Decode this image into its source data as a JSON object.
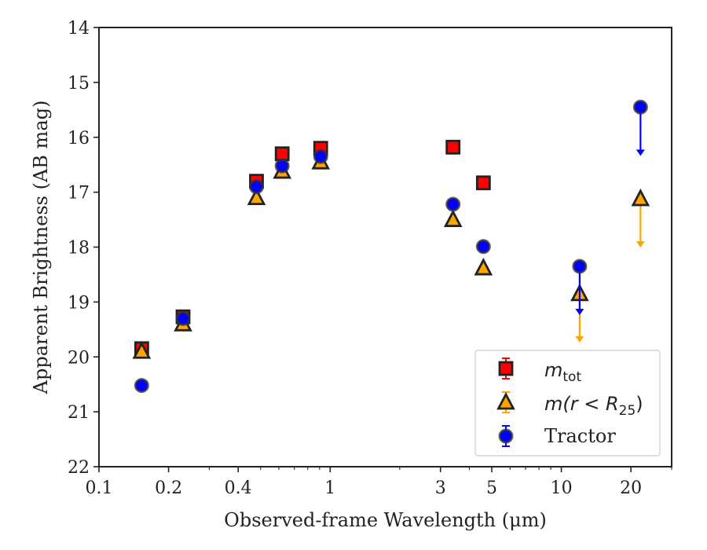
{
  "chart_data": {
    "type": "scatter",
    "title": "",
    "xlabel": "Observed-frame Wavelength (μm)",
    "ylabel": "Apparent Brightness (AB mag)",
    "x_scale": "log",
    "xlim": [
      0.1,
      30
    ],
    "ylim": [
      22,
      14
    ],
    "y_inverted": true,
    "grid": false,
    "legend_position": "lower-right",
    "xticks": [
      {
        "value": 0.1,
        "label": "0.1"
      },
      {
        "value": 0.2,
        "label": "0.2"
      },
      {
        "value": 0.4,
        "label": "0.4"
      },
      {
        "value": 1,
        "label": "1"
      },
      {
        "value": 3,
        "label": "3"
      },
      {
        "value": 5,
        "label": "5"
      },
      {
        "value": 10,
        "label": "10"
      },
      {
        "value": 20,
        "label": "20"
      }
    ],
    "yticks": [
      {
        "value": 14,
        "label": "14"
      },
      {
        "value": 15,
        "label": "15"
      },
      {
        "value": 16,
        "label": "16"
      },
      {
        "value": 17,
        "label": "17"
      },
      {
        "value": 18,
        "label": "18"
      },
      {
        "value": 19,
        "label": "19"
      },
      {
        "value": 20,
        "label": "20"
      },
      {
        "value": 21,
        "label": "21"
      },
      {
        "value": 22,
        "label": "22"
      }
    ],
    "series": [
      {
        "name": "m_tot",
        "legend_main": "m",
        "legend_sub": "tot",
        "marker": "square",
        "color": "#ff0000",
        "points": [
          {
            "x": 0.153,
            "y": 19.85
          },
          {
            "x": 0.231,
            "y": 19.27
          },
          {
            "x": 0.48,
            "y": 16.8
          },
          {
            "x": 0.62,
            "y": 16.3
          },
          {
            "x": 0.91,
            "y": 16.2
          },
          {
            "x": 3.4,
            "y": 16.18
          },
          {
            "x": 4.6,
            "y": 16.83
          }
        ]
      },
      {
        "name": "m(r < R25)",
        "legend_prefix": "m(r < R",
        "legend_sub": "25",
        "legend_suffix": ")",
        "marker": "triangle",
        "color": "#ffa500",
        "points": [
          {
            "x": 0.153,
            "y": 19.9
          },
          {
            "x": 0.231,
            "y": 19.4
          },
          {
            "x": 0.48,
            "y": 17.1
          },
          {
            "x": 0.62,
            "y": 16.62
          },
          {
            "x": 0.91,
            "y": 16.45
          },
          {
            "x": 3.4,
            "y": 17.5
          },
          {
            "x": 4.6,
            "y": 18.38
          },
          {
            "x": 12,
            "y": 18.85,
            "upper_limit": true
          },
          {
            "x": 22,
            "y": 17.12,
            "upper_limit": true
          }
        ]
      },
      {
        "name": "Tractor",
        "marker": "circle",
        "color": "#0000ff",
        "points": [
          {
            "x": 0.153,
            "y": 20.52
          },
          {
            "x": 0.231,
            "y": 19.3
          },
          {
            "x": 0.48,
            "y": 16.9
          },
          {
            "x": 0.62,
            "y": 16.52
          },
          {
            "x": 0.91,
            "y": 16.35
          },
          {
            "x": 3.4,
            "y": 17.22
          },
          {
            "x": 4.6,
            "y": 17.99
          },
          {
            "x": 12,
            "y": 18.35,
            "upper_limit": true
          },
          {
            "x": 22,
            "y": 15.45,
            "upper_limit": true
          }
        ]
      }
    ],
    "legend_entries": [
      {
        "label_main": "m",
        "label_sub": "tot"
      },
      {
        "label_main": "m(r < R",
        "label_sub": "25",
        "label_suffix": ")"
      },
      {
        "label_main": "Tractor"
      }
    ]
  }
}
